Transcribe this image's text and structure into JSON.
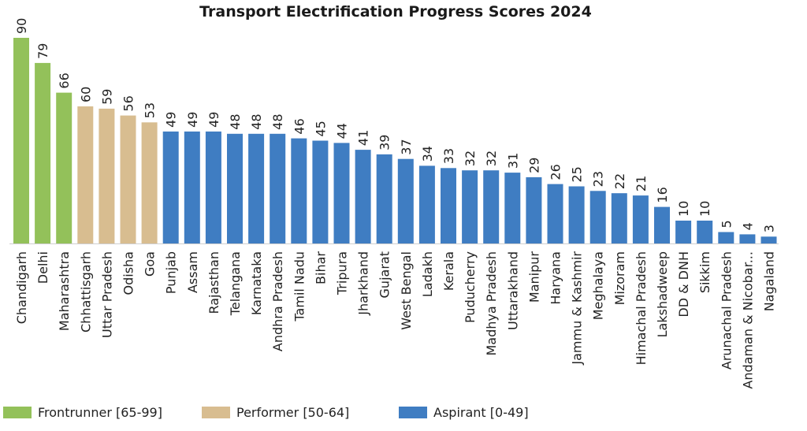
{
  "chart_data": {
    "type": "bar",
    "title": "Transport Electrification Progress Scores 2024",
    "xlabel": "",
    "ylabel": "",
    "ylim": [
      0,
      90
    ],
    "grid": false,
    "legend_position": "bottom",
    "categories": [
      "Chandigarh",
      "Delhi",
      "Maharashtra",
      "Chhattisgarh",
      "Uttar Pradesh",
      "Odisha",
      "Goa",
      "Punjab",
      "Assam",
      "Rajasthan",
      "Telangana",
      "Karnataka",
      "Andhra Pradesh",
      "Tamil Nadu",
      "Bihar",
      "Tripura",
      "Jharkhand",
      "Gujarat",
      "West Bengal",
      "Ladakh",
      "Kerala",
      "Puducherry",
      "Madhya Pradesh",
      "Uttarakhand",
      "Manipur",
      "Haryana",
      "Jammu & Kashmir",
      "Meghalaya",
      "Mizoram",
      "Himachal Pradesh",
      "Lakshadweep",
      "DD & DNH",
      "Sikkim",
      "Arunachal Pradesh",
      "Andaman & Nicobar...",
      "Nagaland"
    ],
    "values": [
      90,
      79,
      66,
      60,
      59,
      56,
      53,
      49,
      49,
      49,
      48,
      48,
      48,
      46,
      45,
      44,
      41,
      39,
      37,
      34,
      33,
      32,
      32,
      31,
      29,
      26,
      25,
      23,
      22,
      21,
      16,
      10,
      10,
      5,
      4,
      3
    ],
    "groups": [
      0,
      0,
      0,
      1,
      1,
      1,
      1,
      2,
      2,
      2,
      2,
      2,
      2,
      2,
      2,
      2,
      2,
      2,
      2,
      2,
      2,
      2,
      2,
      2,
      2,
      2,
      2,
      2,
      2,
      2,
      2,
      2,
      2,
      2,
      2,
      2
    ],
    "legend": [
      {
        "label": "Frontrunner [65-99]",
        "color": "#93c15a"
      },
      {
        "label": "Performer [50-64]",
        "color": "#d8bd90"
      },
      {
        "label": "Aspirant [0-49]",
        "color": "#3f7dc2"
      }
    ]
  }
}
